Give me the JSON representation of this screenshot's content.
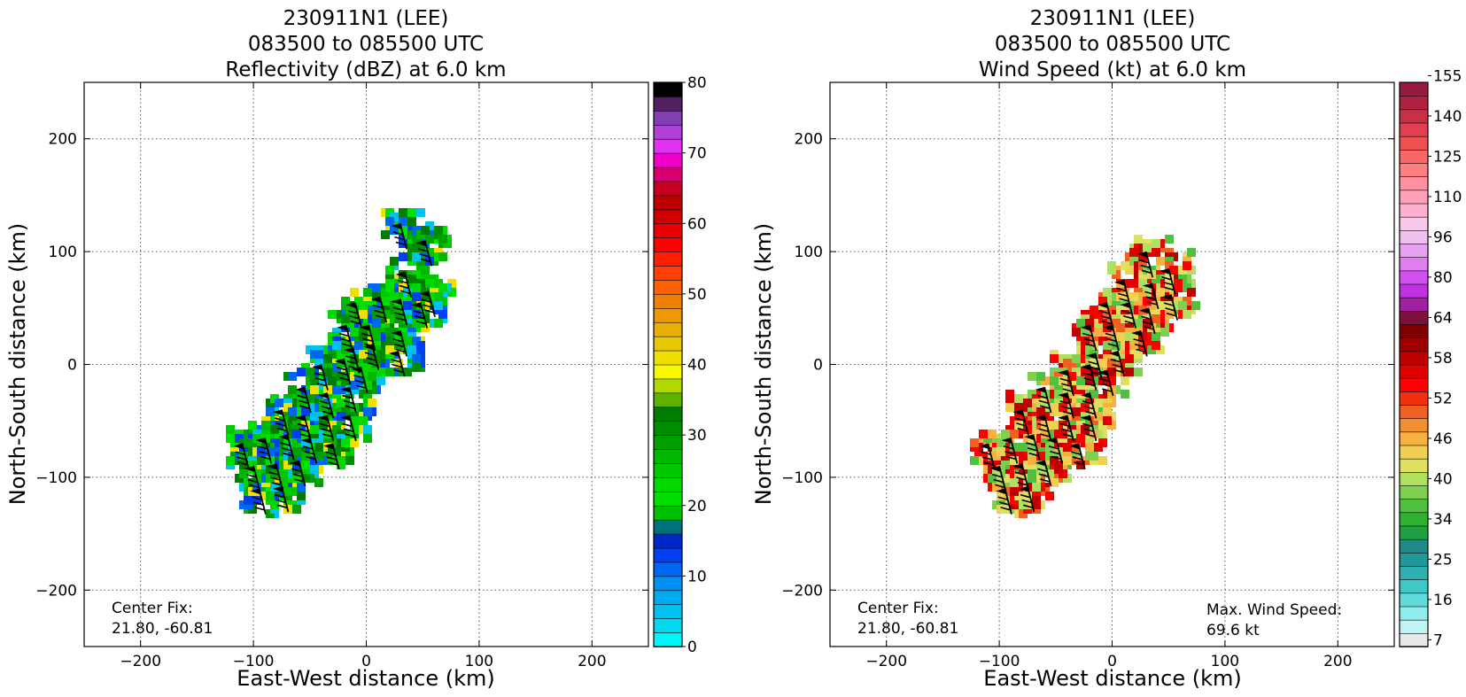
{
  "panels": [
    {
      "title_lines": [
        "230911N1 (LEE)",
        "083500 to 085500 UTC",
        "Reflectivity (dBZ) at 6.0 km"
      ],
      "xlabel": "East-West distance (km)",
      "ylabel": "North-South distance (km)",
      "annotation_left": [
        "Center Fix:",
        "21.80, -60.81"
      ],
      "annotation_right": []
    },
    {
      "title_lines": [
        "230911N1 (LEE)",
        "083500 to 085500 UTC",
        "Wind Speed (kt) at 6.0 km"
      ],
      "xlabel": "East-West distance (km)",
      "ylabel": "North-South distance (km)",
      "annotation_left": [
        "Center Fix:",
        "21.80, -60.81"
      ],
      "annotation_right": [
        "Max. Wind Speed:",
        "69.6 kt"
      ]
    }
  ],
  "chart_data": [
    {
      "type": "heatmap",
      "variable": "Reflectivity (dBZ)",
      "xlim": [
        -250,
        250
      ],
      "ylim": [
        -250,
        250
      ],
      "x_ticks": [
        -200,
        -100,
        0,
        100,
        200
      ],
      "y_ticks": [
        -200,
        -100,
        0,
        100,
        200
      ],
      "grid": true,
      "colorbar": {
        "vmin": 0,
        "vmax": 80,
        "tick_labels": [
          "0",
          "10",
          "20",
          "30",
          "40",
          "50",
          "60",
          "70",
          "80"
        ],
        "colors": [
          "#00f5f5",
          "#00d8ee",
          "#00c2ee",
          "#00aaee",
          "#0090f0",
          "#0068f0",
          "#0040f0",
          "#0028c8",
          "#00707a",
          "#00c000",
          "#00e000",
          "#00d800",
          "#00c800",
          "#00b800",
          "#00a000",
          "#008c00",
          "#007c00",
          "#60b000",
          "#b0d800",
          "#f8f800",
          "#f0e000",
          "#e8c800",
          "#e8b000",
          "#f09800",
          "#f08000",
          "#ff6000",
          "#ff4000",
          "#ff2000",
          "#ff0000",
          "#e80000",
          "#d00000",
          "#c00000",
          "#c80020",
          "#d80070",
          "#f000c8",
          "#e030f0",
          "#b040d8",
          "#8040b0",
          "#502060",
          "#000000"
        ]
      },
      "barbs": [
        {
          "x": 30,
          "y": 125
        },
        {
          "x": 52,
          "y": 110
        },
        {
          "x": 34,
          "y": 82
        },
        {
          "x": 55,
          "y": 65
        },
        {
          "x": -10,
          "y": 55
        },
        {
          "x": 12,
          "y": 60
        },
        {
          "x": 30,
          "y": 58
        },
        {
          "x": 48,
          "y": 55
        },
        {
          "x": -18,
          "y": 35
        },
        {
          "x": 2,
          "y": 35
        },
        {
          "x": 30,
          "y": 30
        },
        {
          "x": -12,
          "y": 15
        },
        {
          "x": 5,
          "y": 18
        },
        {
          "x": 28,
          "y": 12
        },
        {
          "x": -40,
          "y": 0
        },
        {
          "x": -20,
          "y": 5
        },
        {
          "x": -5,
          "y": -2
        },
        {
          "x": -55,
          "y": -20
        },
        {
          "x": -35,
          "y": -25
        },
        {
          "x": -15,
          "y": -20
        },
        {
          "x": -75,
          "y": -40
        },
        {
          "x": -55,
          "y": -45
        },
        {
          "x": -35,
          "y": -45
        },
        {
          "x": -15,
          "y": -45
        },
        {
          "x": -110,
          "y": -70
        },
        {
          "x": -90,
          "y": -65
        },
        {
          "x": -70,
          "y": -62
        },
        {
          "x": -50,
          "y": -65
        },
        {
          "x": -30,
          "y": -70
        },
        {
          "x": -100,
          "y": -90
        },
        {
          "x": -80,
          "y": -88
        },
        {
          "x": -60,
          "y": -85
        },
        {
          "x": -95,
          "y": -110
        },
        {
          "x": -75,
          "y": -108
        }
      ]
    },
    {
      "type": "heatmap",
      "variable": "Wind Speed (kt)",
      "xlim": [
        -250,
        250
      ],
      "ylim": [
        -250,
        250
      ],
      "x_ticks": [
        -200,
        -100,
        0,
        100,
        200
      ],
      "y_ticks": [
        -200,
        -100,
        0,
        100,
        200
      ],
      "grid": true,
      "colorbar": {
        "tick_labels": [
          "7",
          "16",
          "25",
          "34",
          "40",
          "46",
          "52",
          "58",
          "64",
          "80",
          "96",
          "110",
          "125",
          "140",
          "155"
        ],
        "colors": [
          "#e8e8e8",
          "#c0f4f4",
          "#90ecec",
          "#60dcdc",
          "#40c8c8",
          "#30b0b0",
          "#209898",
          "#208888",
          "#20a040",
          "#30b030",
          "#50c040",
          "#80d050",
          "#b0e060",
          "#e0e060",
          "#f0d050",
          "#f8b040",
          "#f09030",
          "#f06020",
          "#f03010",
          "#ff0000",
          "#e00000",
          "#c00000",
          "#a00000",
          "#800000",
          "#801040",
          "#a020a0",
          "#c030e0",
          "#d050f0",
          "#e080f0",
          "#e8a0f0",
          "#f0c0f0",
          "#f8c8e8",
          "#ffb0d0",
          "#ffa0b8",
          "#ff90a0",
          "#ff8080",
          "#f86868",
          "#f05050",
          "#e04050",
          "#c83048",
          "#b02040",
          "#981840"
        ]
      },
      "max_wind_speed": "69.6 kt",
      "barbs": [
        {
          "x": 30,
          "y": 100
        },
        {
          "x": 50,
          "y": 85
        },
        {
          "x": 10,
          "y": 75
        },
        {
          "x": 35,
          "y": 72
        },
        {
          "x": 52,
          "y": 62
        },
        {
          "x": -5,
          "y": 55
        },
        {
          "x": 15,
          "y": 55
        },
        {
          "x": 32,
          "y": 50
        },
        {
          "x": -20,
          "y": 35
        },
        {
          "x": 0,
          "y": 35
        },
        {
          "x": 25,
          "y": 30
        },
        {
          "x": -15,
          "y": 10
        },
        {
          "x": 5,
          "y": 12
        },
        {
          "x": -40,
          "y": -5
        },
        {
          "x": -20,
          "y": 0
        },
        {
          "x": -5,
          "y": -5
        },
        {
          "x": -60,
          "y": -20
        },
        {
          "x": -40,
          "y": -25
        },
        {
          "x": -20,
          "y": -25
        },
        {
          "x": -80,
          "y": -40
        },
        {
          "x": -60,
          "y": -45
        },
        {
          "x": -40,
          "y": -45
        },
        {
          "x": -20,
          "y": -45
        },
        {
          "x": -110,
          "y": -70
        },
        {
          "x": -90,
          "y": -65
        },
        {
          "x": -70,
          "y": -62
        },
        {
          "x": -50,
          "y": -65
        },
        {
          "x": -30,
          "y": -70
        },
        {
          "x": -100,
          "y": -90
        },
        {
          "x": -80,
          "y": -88
        },
        {
          "x": -60,
          "y": -85
        },
        {
          "x": -95,
          "y": -110
        },
        {
          "x": -75,
          "y": -108
        }
      ]
    }
  ]
}
